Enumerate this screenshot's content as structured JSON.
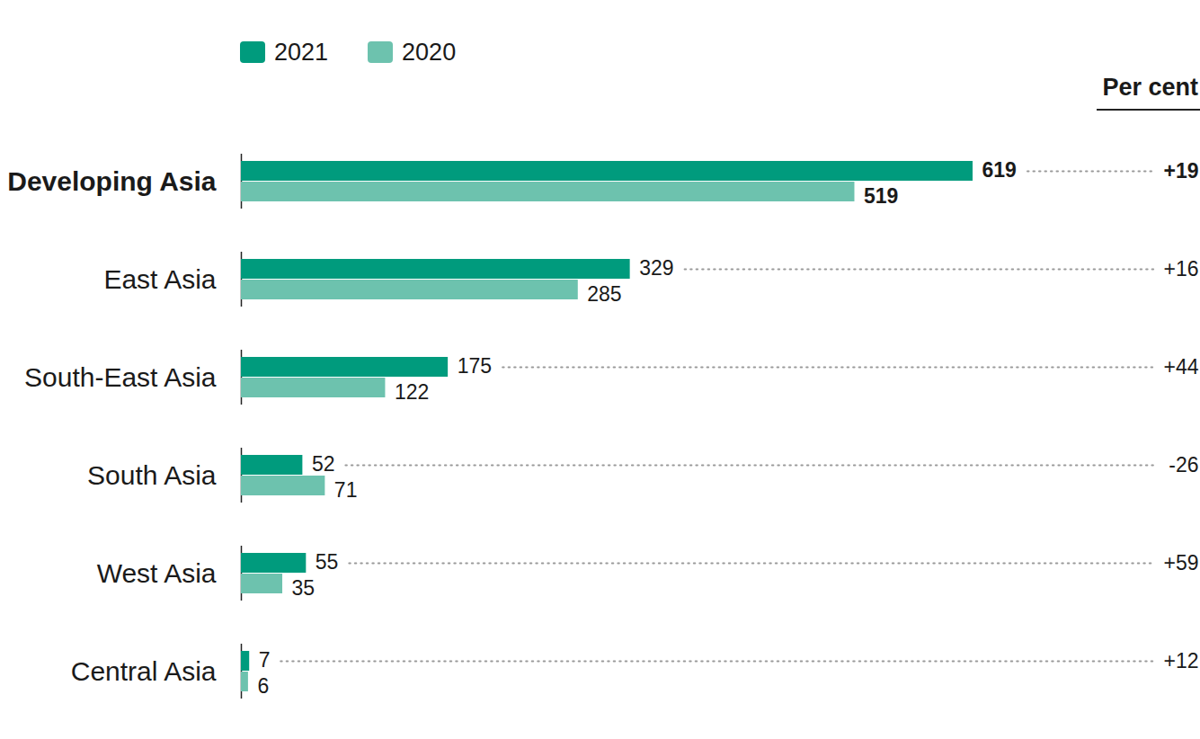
{
  "chart_data": {
    "type": "bar",
    "orientation": "horizontal",
    "categories": [
      "Developing Asia",
      "East Asia",
      "South-East Asia",
      "South Asia",
      "West Asia",
      "Central Asia"
    ],
    "series": [
      {
        "name": "2021",
        "color": "#009b7d",
        "values": [
          619,
          329,
          175,
          52,
          55,
          7
        ]
      },
      {
        "name": "2020",
        "color": "#6dc2ae",
        "values": [
          519,
          285,
          122,
          71,
          35,
          6
        ]
      }
    ],
    "xlim": [
      0,
      619
    ],
    "tick_labels": "y",
    "data_labels": true,
    "legend": "top",
    "change": {
      "title": "Per cent",
      "values": [
        19,
        16,
        44,
        -26,
        59,
        12
      ],
      "value_labels": [
        "+19",
        "+16",
        "+44",
        "-26",
        "+59",
        "+12"
      ]
    }
  }
}
